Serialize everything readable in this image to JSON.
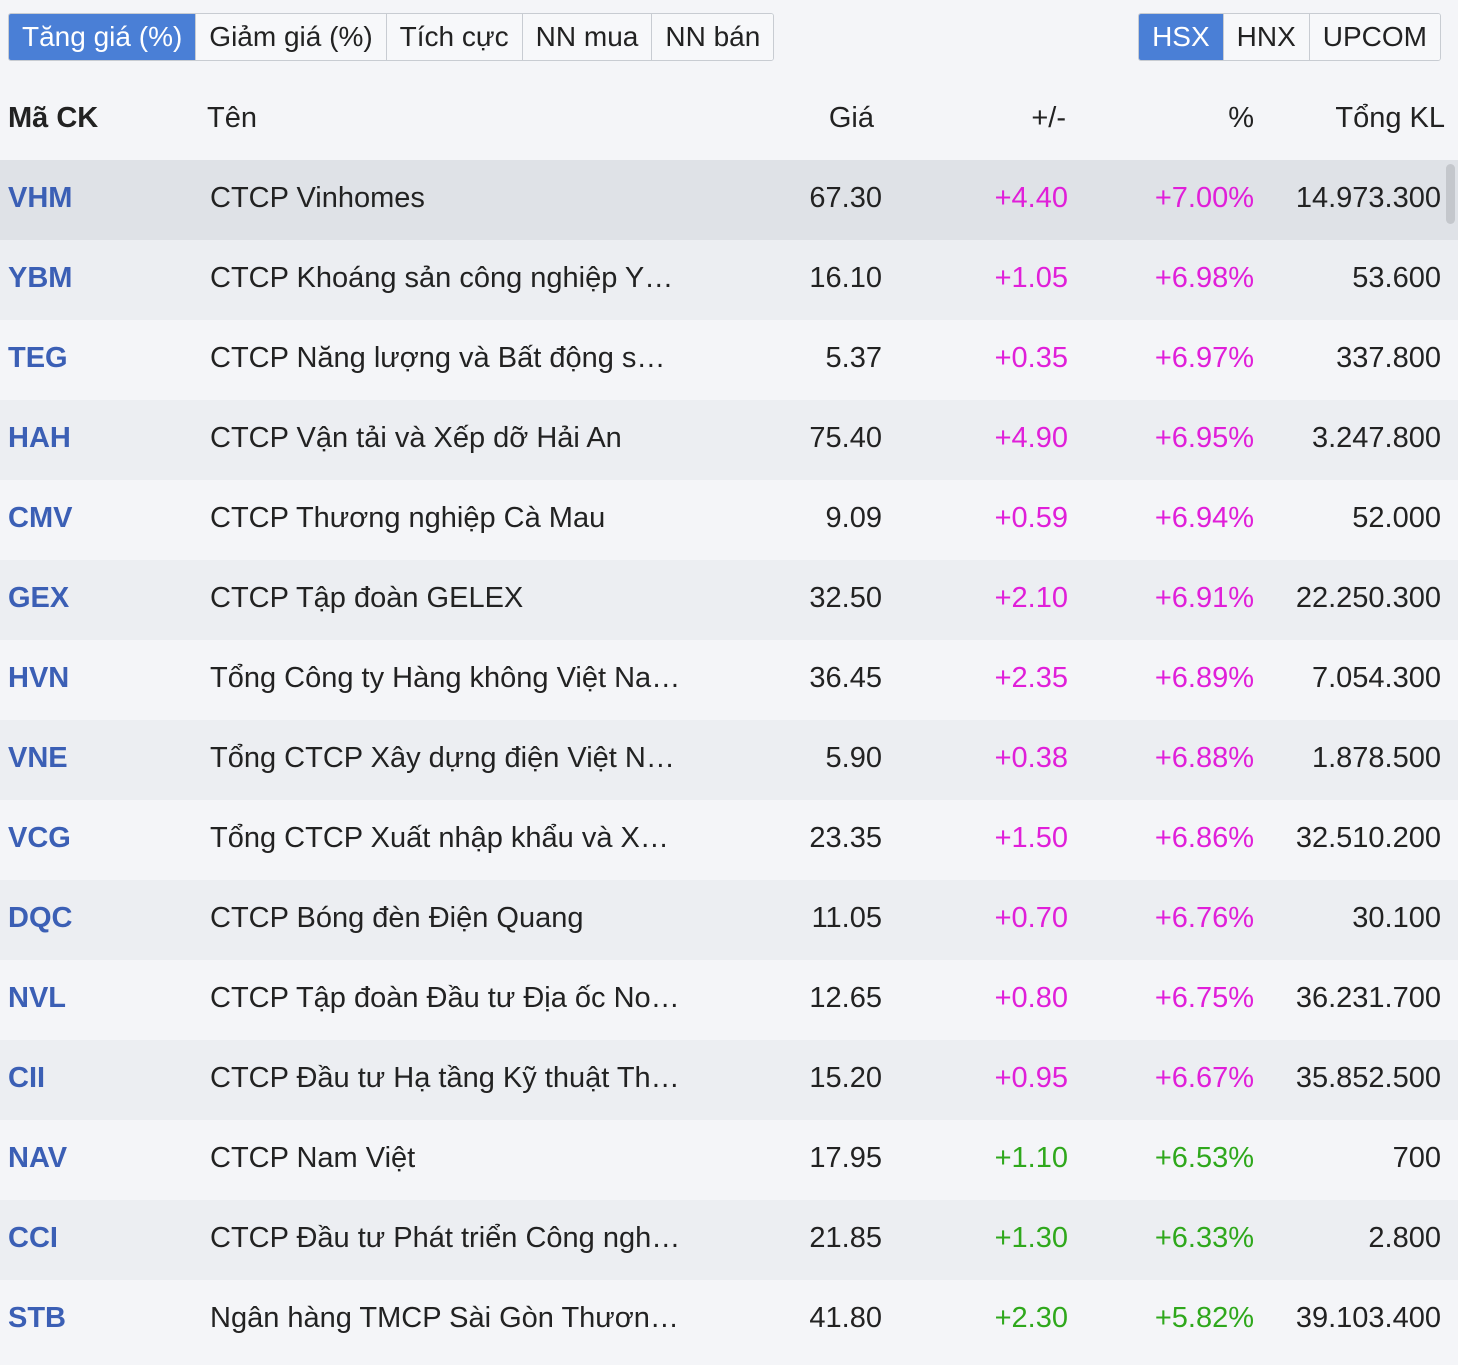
{
  "tabs_left": [
    {
      "label": "Tăng giá (%)",
      "active": true
    },
    {
      "label": "Giảm giá (%)",
      "active": false
    },
    {
      "label": "Tích cực",
      "active": false
    },
    {
      "label": "NN mua",
      "active": false
    },
    {
      "label": "NN bán",
      "active": false
    }
  ],
  "tabs_right": [
    {
      "label": "HSX",
      "active": true
    },
    {
      "label": "HNX",
      "active": false
    },
    {
      "label": "UPCOM",
      "active": false
    }
  ],
  "columns": {
    "code": "Mã CK",
    "name": "Tên",
    "price": "Giá",
    "change": "+/-",
    "pct": "%",
    "volume": "Tổng KL"
  },
  "colors": {
    "ceiling": "#e01fd9",
    "up": "#2fa81c",
    "code": "#3b5fb5",
    "active_tab": "#4a7fd6"
  },
  "rows": [
    {
      "code": "VHM",
      "name": "CTCP Vinhomes",
      "price": "67.30",
      "change": "+4.40",
      "pct": "+7.00%",
      "volume": "14.973.300",
      "status": "ceil"
    },
    {
      "code": "YBM",
      "name": "CTCP Khoáng sản công nghiệp Y…",
      "price": "16.10",
      "change": "+1.05",
      "pct": "+6.98%",
      "volume": "53.600",
      "status": "ceil"
    },
    {
      "code": "TEG",
      "name": "CTCP Năng lượng và Bất động s…",
      "price": "5.37",
      "change": "+0.35",
      "pct": "+6.97%",
      "volume": "337.800",
      "status": "ceil"
    },
    {
      "code": "HAH",
      "name": "CTCP Vận tải và Xếp dỡ Hải An",
      "price": "75.40",
      "change": "+4.90",
      "pct": "+6.95%",
      "volume": "3.247.800",
      "status": "ceil"
    },
    {
      "code": "CMV",
      "name": "CTCP Thương nghiệp Cà Mau",
      "price": "9.09",
      "change": "+0.59",
      "pct": "+6.94%",
      "volume": "52.000",
      "status": "ceil"
    },
    {
      "code": "GEX",
      "name": "CTCP Tập đoàn GELEX",
      "price": "32.50",
      "change": "+2.10",
      "pct": "+6.91%",
      "volume": "22.250.300",
      "status": "ceil"
    },
    {
      "code": "HVN",
      "name": "Tổng Công ty Hàng không Việt Na…",
      "price": "36.45",
      "change": "+2.35",
      "pct": "+6.89%",
      "volume": "7.054.300",
      "status": "ceil"
    },
    {
      "code": "VNE",
      "name": "Tổng CTCP Xây dựng điện Việt N…",
      "price": "5.90",
      "change": "+0.38",
      "pct": "+6.88%",
      "volume": "1.878.500",
      "status": "ceil"
    },
    {
      "code": "VCG",
      "name": "Tổng CTCP Xuất nhập khẩu và X…",
      "price": "23.35",
      "change": "+1.50",
      "pct": "+6.86%",
      "volume": "32.510.200",
      "status": "ceil"
    },
    {
      "code": "DQC",
      "name": "CTCP Bóng đèn Điện Quang",
      "price": "11.05",
      "change": "+0.70",
      "pct": "+6.76%",
      "volume": "30.100",
      "status": "ceil"
    },
    {
      "code": "NVL",
      "name": "CTCP Tập đoàn Đầu tư Địa ốc No…",
      "price": "12.65",
      "change": "+0.80",
      "pct": "+6.75%",
      "volume": "36.231.700",
      "status": "ceil"
    },
    {
      "code": "CII",
      "name": "CTCP Đầu tư Hạ tầng Kỹ thuật Th…",
      "price": "15.20",
      "change": "+0.95",
      "pct": "+6.67%",
      "volume": "35.852.500",
      "status": "ceil"
    },
    {
      "code": "NAV",
      "name": "CTCP Nam Việt",
      "price": "17.95",
      "change": "+1.10",
      "pct": "+6.53%",
      "volume": "700",
      "status": "up"
    },
    {
      "code": "CCI",
      "name": "CTCP Đầu tư Phát triển Công ngh…",
      "price": "21.85",
      "change": "+1.30",
      "pct": "+6.33%",
      "volume": "2.800",
      "status": "up"
    },
    {
      "code": "STB",
      "name": "Ngân hàng TMCP Sài Gòn Thươn…",
      "price": "41.80",
      "change": "+2.30",
      "pct": "+5.82%",
      "volume": "39.103.400",
      "status": "up"
    }
  ]
}
